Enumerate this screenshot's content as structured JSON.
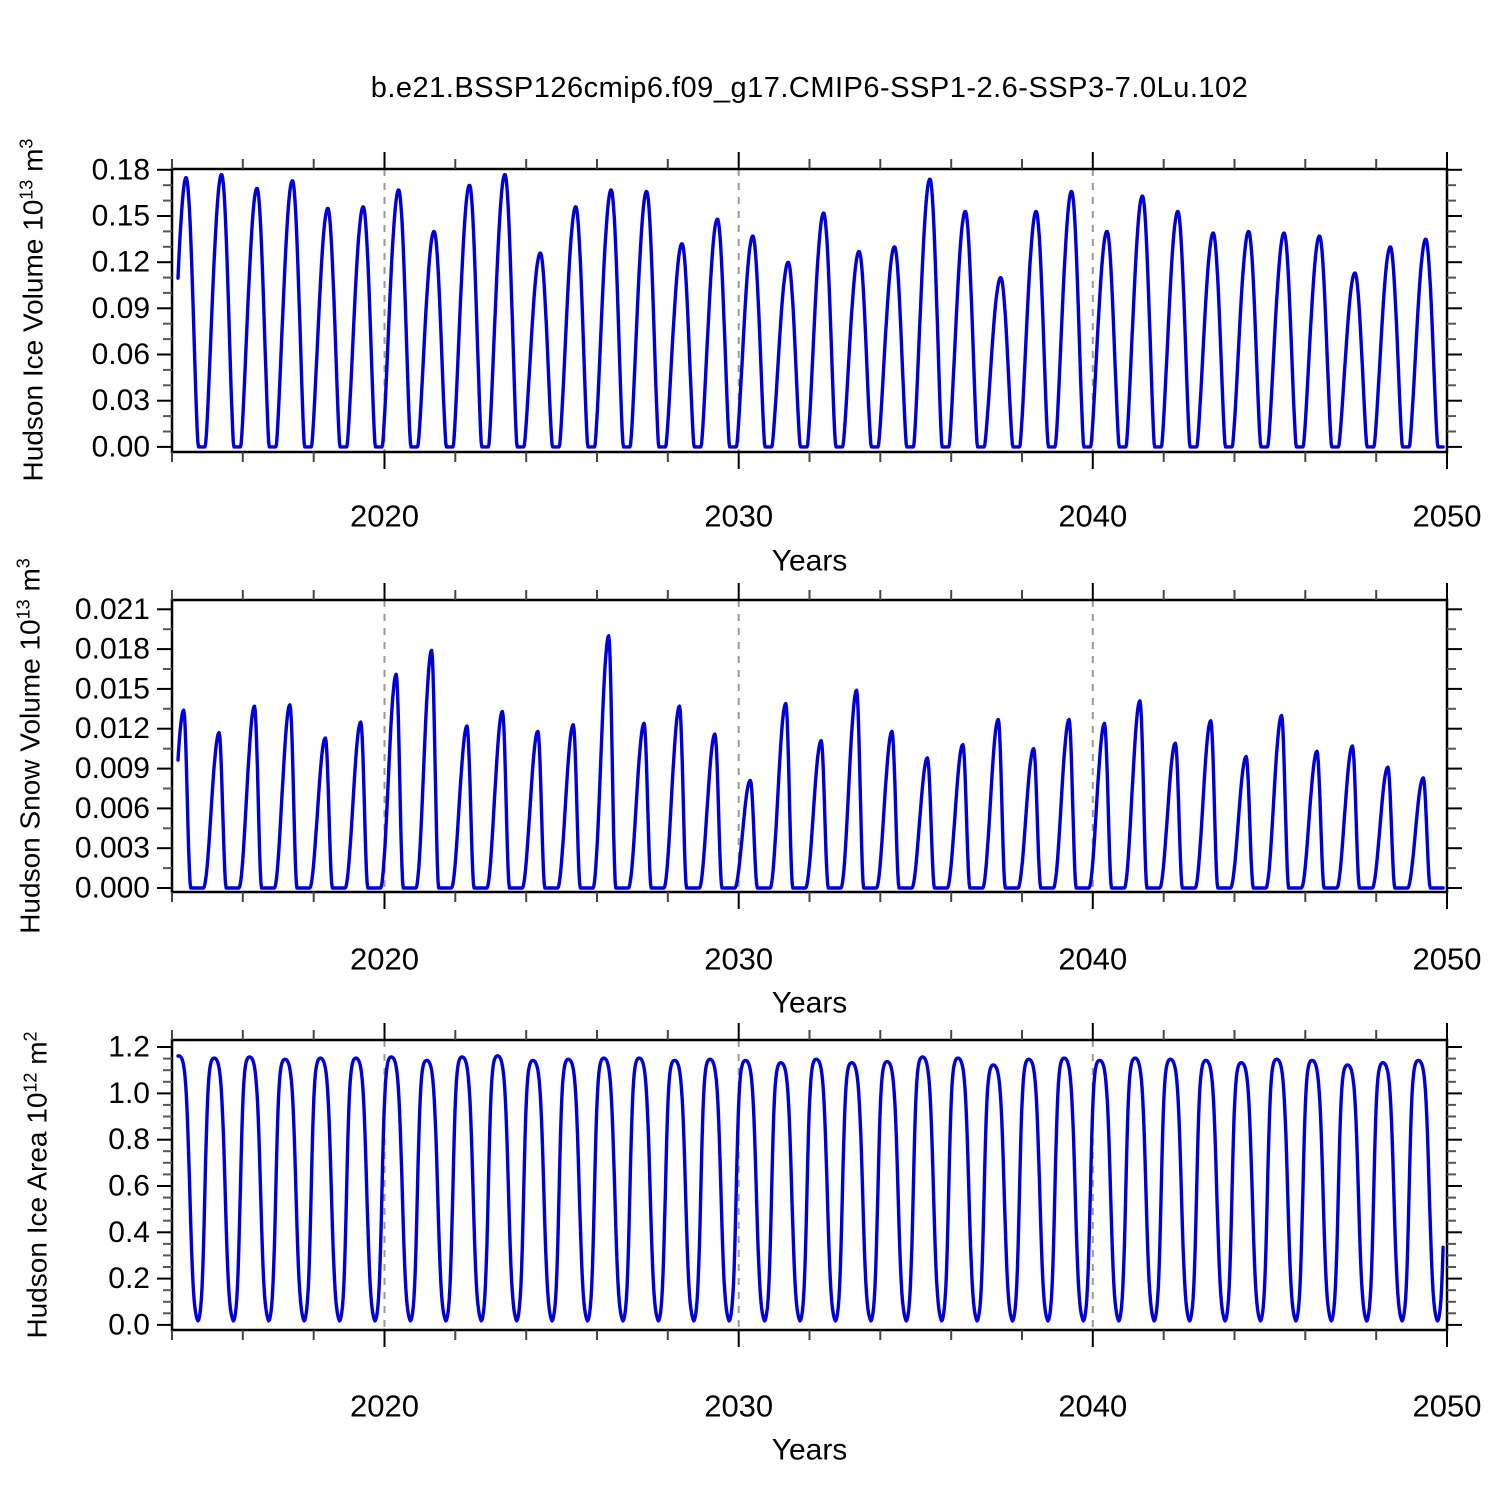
{
  "page": {
    "title": "b.e21.BSSP126cmip6.f09_g17.CMIP6-SSP1-2.6-SSP3-7.0Lu.102",
    "background_color": "#ffffff",
    "line_color": "#0000dd",
    "axis_color": "#000000",
    "minor_tick_color": "#555555",
    "gridline_color": "#999999"
  },
  "chart_data": [
    {
      "type": "line",
      "name": "hudson-ice-volume",
      "title": "b.e21.BSSP126cmip6.f09_g17.CMIP6-SSP1-2.6-SSP3-7.0Lu.102",
      "ylabel_parts": [
        "Hudson Ice Volume 10",
        {
          "sup": "13"
        },
        " m",
        {
          "sup": "3"
        }
      ],
      "xlabel": "Years",
      "xlim": [
        2014,
        2050
      ],
      "ylim": [
        -0.0033,
        0.1805
      ],
      "x_major_ticks": [
        2020,
        2030,
        2040,
        2050
      ],
      "x_minor_step": 2,
      "x_gridlines": [
        2020,
        2030,
        2040
      ],
      "y_major_step": 0.03,
      "y_minor_step": 0.01,
      "y_max_tick": 0.18,
      "y_tick_decimals": 2,
      "y_tick_labels": [
        "0.00",
        "0.03",
        "0.06",
        "0.09",
        "0.12",
        "0.15",
        "0.18"
      ],
      "grid": false,
      "legend": "none",
      "seasonal_cycle_note": "annual cycle: winter/spring peak, summer minimum near 0",
      "annual_min_value": 0,
      "years": [
        2014,
        2015,
        2016,
        2017,
        2018,
        2019,
        2020,
        2021,
        2022,
        2023,
        2024,
        2025,
        2026,
        2027,
        2028,
        2029,
        2030,
        2031,
        2032,
        2033,
        2034,
        2035,
        2036,
        2037,
        2038,
        2039,
        2040,
        2041,
        2042,
        2043,
        2044,
        2045,
        2046,
        2047,
        2048,
        2049
      ],
      "annual_peak_values": [
        0.175,
        0.177,
        0.168,
        0.173,
        0.155,
        0.156,
        0.167,
        0.14,
        0.17,
        0.177,
        0.126,
        0.156,
        0.167,
        0.166,
        0.132,
        0.148,
        0.137,
        0.12,
        0.152,
        0.127,
        0.13,
        0.174,
        0.153,
        0.11,
        0.153,
        0.166,
        0.14,
        0.163,
        0.153,
        0.139,
        0.14,
        0.139,
        0.137,
        0.113,
        0.13,
        0.135
      ],
      "shape": {
        "kind": "pulse",
        "peak_phase": 0.4,
        "rise": 0.46,
        "fall": 0.34,
        "power": 1.35
      }
    },
    {
      "type": "line",
      "name": "hudson-snow-volume",
      "ylabel_parts": [
        "Hudson Snow Volume 10",
        {
          "sup": "13"
        },
        " m",
        {
          "sup": "3"
        }
      ],
      "xlabel": "Years",
      "xlim": [
        2014,
        2050
      ],
      "ylim": [
        -0.0003,
        0.0217
      ],
      "x_major_ticks": [
        2020,
        2030,
        2040,
        2050
      ],
      "x_minor_step": 2,
      "x_gridlines": [
        2020,
        2030,
        2040
      ],
      "y_major_step": 0.003,
      "y_minor_step": 0.0015,
      "y_max_tick": 0.021,
      "y_tick_decimals": 3,
      "y_tick_labels": [
        "0.000",
        "0.003",
        "0.006",
        "0.009",
        "0.012",
        "0.015",
        "0.018",
        "0.021"
      ],
      "grid": false,
      "legend": "none",
      "seasonal_cycle_note": "annual cycle: spring peak, snow-free summer at 0",
      "annual_min_value": 0,
      "years": [
        2014,
        2015,
        2016,
        2017,
        2018,
        2019,
        2020,
        2021,
        2022,
        2023,
        2024,
        2025,
        2026,
        2027,
        2028,
        2029,
        2030,
        2031,
        2032,
        2033,
        2034,
        2035,
        2036,
        2037,
        2038,
        2039,
        2040,
        2041,
        2042,
        2043,
        2044,
        2045,
        2046,
        2047,
        2048,
        2049
      ],
      "annual_peak_values": [
        0.0134,
        0.0117,
        0.0137,
        0.0138,
        0.0113,
        0.0125,
        0.0161,
        0.0179,
        0.0122,
        0.0133,
        0.0118,
        0.0123,
        0.019,
        0.0124,
        0.0137,
        0.0116,
        0.0081,
        0.0139,
        0.0111,
        0.0149,
        0.0118,
        0.0098,
        0.0108,
        0.0127,
        0.0105,
        0.0127,
        0.0124,
        0.0141,
        0.0109,
        0.0126,
        0.0099,
        0.013,
        0.0103,
        0.0107,
        0.0091,
        0.0083
      ],
      "shape": {
        "kind": "pulse",
        "peak_phase": 0.33,
        "rise": 0.44,
        "fall": 0.2,
        "power": 1.9
      }
    },
    {
      "type": "line",
      "name": "hudson-ice-area",
      "ylabel_parts": [
        "Hudson Ice Area 10",
        {
          "sup": "12"
        },
        " m",
        {
          "sup": "2"
        }
      ],
      "xlabel": "Years",
      "xlim": [
        2014,
        2050
      ],
      "ylim": [
        -0.022,
        1.2304
      ],
      "x_major_ticks": [
        2020,
        2030,
        2040,
        2050
      ],
      "x_minor_step": 2,
      "x_gridlines": [
        2020,
        2030,
        2040
      ],
      "y_major_step": 0.2,
      "y_minor_step": 0.05,
      "y_max_tick": 1.2,
      "y_tick_decimals": 1,
      "y_tick_labels": [
        "0.0",
        "0.2",
        "0.4",
        "0.6",
        "0.8",
        "1.0",
        "1.2"
      ],
      "grid": false,
      "legend": "none",
      "seasonal_cycle_note": "annual cycle: winter plateau at full coverage, ice-free summer at 0",
      "annual_min_value": 0,
      "years": [
        2014,
        2015,
        2016,
        2017,
        2018,
        2019,
        2020,
        2021,
        2022,
        2023,
        2024,
        2025,
        2026,
        2027,
        2028,
        2029,
        2030,
        2031,
        2032,
        2033,
        2034,
        2035,
        2036,
        2037,
        2038,
        2039,
        2040,
        2041,
        2042,
        2043,
        2044,
        2045,
        2046,
        2047,
        2048,
        2049
      ],
      "annual_peak_values": [
        1.17,
        1.16,
        1.165,
        1.155,
        1.16,
        1.16,
        1.165,
        1.15,
        1.165,
        1.17,
        1.15,
        1.155,
        1.16,
        1.16,
        1.15,
        1.155,
        1.15,
        1.14,
        1.155,
        1.14,
        1.145,
        1.165,
        1.16,
        1.13,
        1.155,
        1.16,
        1.15,
        1.16,
        1.155,
        1.15,
        1.14,
        1.155,
        1.15,
        1.13,
        1.14,
        1.15
      ],
      "shape": {
        "kind": "plateau",
        "center_phase": 0.2,
        "freeze_center": -0.27,
        "freeze_width": 0.045,
        "melt_center": 0.3,
        "melt_width": 0.055
      }
    }
  ]
}
